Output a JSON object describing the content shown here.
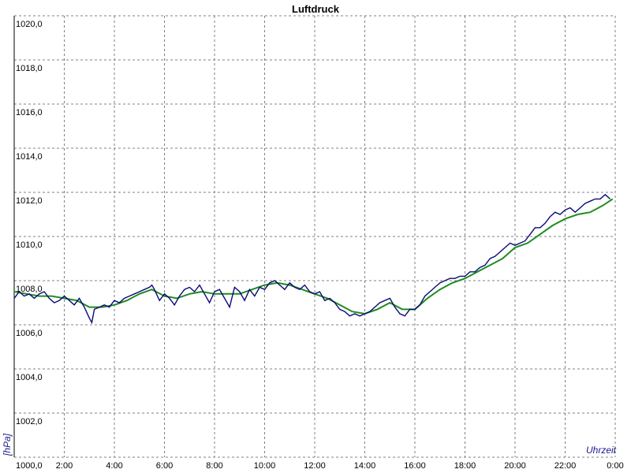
{
  "chart_data": {
    "type": "line",
    "title": "Luftdruck",
    "xlabel": "Uhrzeit",
    "ylabel": "[hPa]",
    "xlim": [
      0,
      24
    ],
    "ylim": [
      1000,
      1020
    ],
    "y_ticks": [
      "1000,0",
      "1002,0",
      "1004,0",
      "1006,0",
      "1008,0",
      "1010,0",
      "1012,0",
      "1014,0",
      "1016,0",
      "1018,0",
      "1020,0"
    ],
    "x_ticks": [
      "2:00",
      "4:00",
      "6:00",
      "8:00",
      "10:00",
      "12:00",
      "14:00",
      "16:00",
      "18:00",
      "20:00",
      "22:00",
      "0:00"
    ],
    "grid": true,
    "colors": {
      "raw": "#0a0a78",
      "smooth": "#1f8c1f",
      "grid": "#808080"
    },
    "series": [
      {
        "x": [
          0.0,
          0.2,
          0.4,
          0.6,
          0.8,
          1.0,
          1.2,
          1.4,
          1.6,
          1.8,
          2.0,
          2.2,
          2.4,
          2.6,
          2.8,
          3.0,
          3.1,
          3.2,
          3.4,
          3.6,
          3.8,
          4.0,
          4.2,
          4.4,
          4.6,
          4.8,
          5.0,
          5.2,
          5.4,
          5.5,
          5.6,
          5.8,
          6.0,
          6.2,
          6.4,
          6.6,
          6.8,
          7.0,
          7.2,
          7.4,
          7.6,
          7.8,
          8.0,
          8.2,
          8.4,
          8.6,
          8.8,
          9.0,
          9.2,
          9.4,
          9.6,
          9.8,
          10.0,
          10.2,
          10.4,
          10.6,
          10.8,
          11.0,
          11.2,
          11.4,
          11.6,
          11.8,
          12.0,
          12.2,
          12.4,
          12.6,
          12.8,
          13.0,
          13.2,
          13.4,
          13.6,
          13.8,
          14.0,
          14.2,
          14.4,
          14.6,
          14.8,
          15.0,
          15.2,
          15.4,
          15.6,
          15.8,
          16.0,
          16.2,
          16.4,
          16.6,
          16.8,
          17.0,
          17.2,
          17.4,
          17.6,
          17.8,
          18.0,
          18.2,
          18.4,
          18.6,
          18.8,
          19.0,
          19.2,
          19.4,
          19.6,
          19.8,
          20.0,
          20.2,
          20.4,
          20.6,
          20.8,
          21.0,
          21.2,
          21.4,
          21.6,
          21.8,
          22.0,
          22.2,
          22.4,
          22.6,
          22.8,
          23.0,
          23.2,
          23.4,
          23.6,
          23.8
        ],
        "values": [
          1007.2,
          1007.5,
          1007.3,
          1007.4,
          1007.2,
          1007.4,
          1007.5,
          1007.2,
          1007.0,
          1007.1,
          1007.3,
          1007.1,
          1006.9,
          1007.2,
          1006.8,
          1006.3,
          1006.1,
          1006.7,
          1006.8,
          1006.9,
          1006.8,
          1007.1,
          1007.0,
          1007.2,
          1007.3,
          1007.4,
          1007.5,
          1007.6,
          1007.7,
          1007.8,
          1007.6,
          1007.1,
          1007.4,
          1007.2,
          1006.9,
          1007.3,
          1007.6,
          1007.7,
          1007.5,
          1007.8,
          1007.4,
          1007.0,
          1007.5,
          1007.6,
          1007.2,
          1006.8,
          1007.7,
          1007.5,
          1007.1,
          1007.6,
          1007.3,
          1007.7,
          1007.6,
          1007.9,
          1008.0,
          1007.8,
          1007.6,
          1007.9,
          1007.7,
          1007.6,
          1007.8,
          1007.5,
          1007.4,
          1007.5,
          1007.1,
          1007.2,
          1007.0,
          1006.7,
          1006.6,
          1006.4,
          1006.5,
          1006.4,
          1006.5,
          1006.6,
          1006.8,
          1007.0,
          1007.1,
          1007.2,
          1006.8,
          1006.5,
          1006.4,
          1006.7,
          1006.7,
          1006.9,
          1007.3,
          1007.5,
          1007.7,
          1007.9,
          1008.0,
          1008.1,
          1008.1,
          1008.2,
          1008.2,
          1008.4,
          1008.4,
          1008.6,
          1008.7,
          1009.0,
          1009.1,
          1009.3,
          1009.5,
          1009.7,
          1009.6,
          1009.7,
          1009.8,
          1010.1,
          1010.4,
          1010.4,
          1010.6,
          1010.9,
          1011.1,
          1011.0,
          1011.2,
          1011.3,
          1011.1,
          1011.3,
          1011.5,
          1011.6,
          1011.7,
          1011.7,
          1011.9,
          1011.7
        ]
      },
      {
        "x": [
          0.0,
          0.5,
          1.0,
          1.5,
          2.0,
          2.5,
          3.0,
          3.5,
          4.0,
          4.5,
          5.0,
          5.5,
          6.0,
          6.5,
          7.0,
          7.5,
          8.0,
          8.5,
          9.0,
          9.5,
          10.0,
          10.5,
          11.0,
          11.5,
          12.0,
          12.5,
          13.0,
          13.5,
          14.0,
          14.5,
          15.0,
          15.5,
          16.0,
          16.5,
          17.0,
          17.5,
          18.0,
          18.5,
          19.0,
          19.5,
          20.0,
          20.5,
          21.0,
          21.5,
          22.0,
          22.5,
          23.0,
          23.5,
          23.9
        ],
        "values": [
          1007.5,
          1007.4,
          1007.3,
          1007.3,
          1007.2,
          1007.1,
          1006.8,
          1006.8,
          1006.9,
          1007.1,
          1007.4,
          1007.6,
          1007.3,
          1007.2,
          1007.4,
          1007.5,
          1007.4,
          1007.4,
          1007.4,
          1007.6,
          1007.8,
          1007.9,
          1007.8,
          1007.6,
          1007.4,
          1007.2,
          1006.9,
          1006.6,
          1006.5,
          1006.7,
          1007.0,
          1006.7,
          1006.7,
          1007.2,
          1007.6,
          1007.9,
          1008.1,
          1008.4,
          1008.7,
          1009.0,
          1009.5,
          1009.7,
          1010.1,
          1010.5,
          1010.8,
          1011.0,
          1011.1,
          1011.4,
          1011.7
        ]
      }
    ]
  }
}
